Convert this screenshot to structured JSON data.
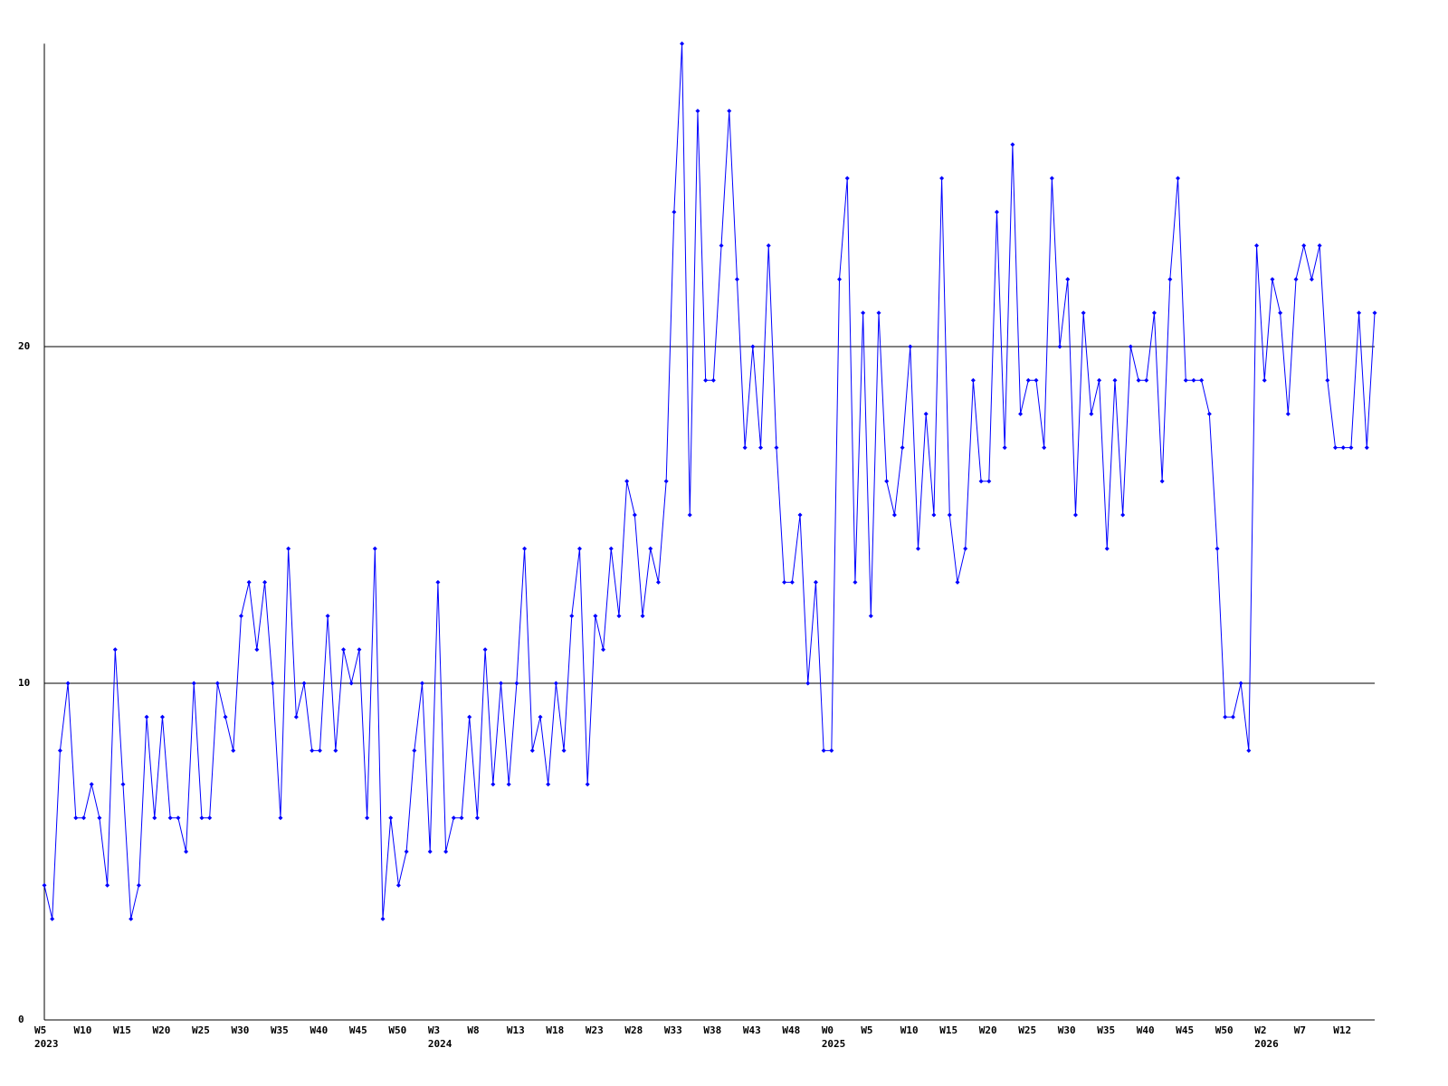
{
  "chart_data": {
    "type": "line",
    "categories": [
      "W5",
      null,
      null,
      null,
      null,
      "W10",
      null,
      null,
      null,
      null,
      "W15",
      null,
      null,
      null,
      null,
      "W20",
      null,
      null,
      null,
      null,
      "W25",
      null,
      null,
      null,
      null,
      "W30",
      null,
      null,
      null,
      null,
      "W35",
      null,
      null,
      null,
      null,
      "W40",
      null,
      null,
      null,
      null,
      "W45",
      null,
      null,
      null,
      null,
      "W50",
      null,
      null,
      null,
      null,
      "W3",
      null,
      null,
      null,
      null,
      "W8",
      null,
      null,
      null,
      null,
      "W13",
      null,
      null,
      null,
      null,
      "W18",
      null,
      null,
      null,
      null,
      "W23",
      null,
      null,
      null,
      null,
      "W28",
      null,
      null,
      null,
      null,
      "W33",
      null,
      null,
      null,
      null,
      "W38",
      null,
      null,
      null,
      null,
      "W43",
      null,
      null,
      null,
      null,
      "W48",
      null,
      null,
      null,
      null,
      "W0",
      null,
      null,
      null,
      null,
      "W5",
      null,
      null,
      null,
      null,
      "W10",
      null,
      null,
      null,
      null,
      "W15",
      null,
      null,
      null,
      null,
      "W20",
      null,
      null,
      null,
      null,
      "W25",
      null,
      null,
      null,
      null,
      "W30",
      null,
      null,
      null,
      null,
      "W35",
      null,
      null,
      null,
      null,
      "W40",
      null,
      null,
      null,
      null,
      "W45",
      null,
      null,
      null,
      null,
      "W50",
      null,
      null,
      null,
      null,
      "W2",
      null,
      null,
      null,
      null,
      "W7",
      null,
      null,
      null,
      null,
      "W12",
      null,
      null,
      null,
      null
    ],
    "years": [
      "2023",
      null,
      null,
      null,
      null,
      null,
      null,
      null,
      null,
      null,
      null,
      null,
      null,
      null,
      null,
      null,
      null,
      null,
      null,
      null,
      null,
      null,
      null,
      null,
      null,
      null,
      null,
      null,
      null,
      null,
      null,
      null,
      null,
      null,
      null,
      null,
      null,
      null,
      null,
      null,
      null,
      null,
      null,
      null,
      null,
      null,
      null,
      null,
      null,
      null,
      "2024",
      null,
      null,
      null,
      null,
      null,
      null,
      null,
      null,
      null,
      null,
      null,
      null,
      null,
      null,
      null,
      null,
      null,
      null,
      null,
      null,
      null,
      null,
      null,
      null,
      null,
      null,
      null,
      null,
      null,
      null,
      null,
      null,
      null,
      null,
      null,
      null,
      null,
      null,
      null,
      null,
      null,
      null,
      null,
      null,
      null,
      null,
      null,
      null,
      null,
      "2025",
      null,
      null,
      null,
      null,
      null,
      null,
      null,
      null,
      null,
      null,
      null,
      null,
      null,
      null,
      null,
      null,
      null,
      null,
      null,
      null,
      null,
      null,
      null,
      null,
      null,
      null,
      null,
      null,
      null,
      null,
      null,
      null,
      null,
      null,
      null,
      null,
      null,
      null,
      null,
      null,
      null,
      null,
      null,
      null,
      null,
      null,
      null,
      null,
      null,
      null,
      null,
      null,
      null,
      null,
      "2026",
      null,
      null,
      null,
      null,
      null,
      null,
      null,
      null,
      null,
      null,
      null,
      null,
      null,
      null
    ],
    "values": [
      4,
      3,
      8,
      10,
      6,
      6,
      7,
      6,
      4,
      11,
      7,
      3,
      4,
      9,
      6,
      9,
      6,
      6,
      5,
      10,
      6,
      6,
      10,
      9,
      8,
      12,
      13,
      11,
      13,
      10,
      6,
      14,
      9,
      10,
      8,
      8,
      12,
      8,
      11,
      10,
      11,
      6,
      14,
      3,
      6,
      4,
      5,
      8,
      10,
      5,
      13,
      5,
      6,
      6,
      9,
      6,
      11,
      7,
      10,
      7,
      10,
      14,
      8,
      9,
      7,
      10,
      8,
      12,
      14,
      7,
      12,
      11,
      14,
      12,
      16,
      15,
      12,
      14,
      13,
      16,
      24,
      29,
      15,
      27,
      19,
      19,
      23,
      27,
      22,
      17,
      20,
      17,
      23,
      17,
      13,
      13,
      15,
      10,
      13,
      8,
      8,
      22,
      25,
      13,
      21,
      12,
      21,
      16,
      15,
      17,
      20,
      14,
      18,
      15,
      25,
      15,
      13,
      14,
      19,
      16,
      16,
      24,
      17,
      26,
      18,
      19,
      19,
      17,
      25,
      20,
      22,
      15,
      21,
      18,
      19,
      14,
      19,
      15,
      20,
      19,
      19,
      21,
      16,
      22,
      25,
      19,
      19,
      19,
      18,
      14,
      9,
      9,
      10,
      8,
      23,
      19,
      22,
      21,
      18,
      22,
      23,
      22,
      23,
      19,
      17,
      17,
      17,
      21,
      17,
      21
    ],
    "color": "#0000ff",
    "ylim": [
      0,
      29
    ],
    "yticks": [
      0,
      10,
      20
    ],
    "grid": true
  }
}
